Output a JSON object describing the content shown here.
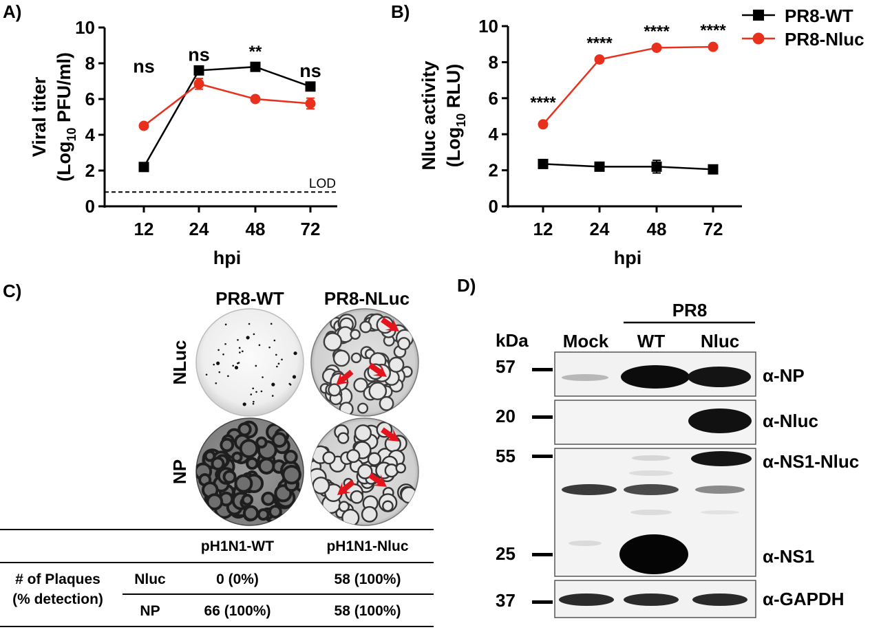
{
  "colors": {
    "wt": "#000000",
    "nluc": "#e8311d",
    "arrow": "#e3141b"
  },
  "legend": {
    "items": [
      {
        "label": "PR8-WT",
        "marker": "square"
      },
      {
        "label": "PR8-Nluc",
        "marker": "circle"
      }
    ]
  },
  "chart_data": [
    {
      "type": "line",
      "panel": "A)",
      "xlabel": "hpi",
      "ylabel_line1": "Viral titer",
      "ylabel_line2": "(Log10 PFU/ml)",
      "ylabel_prefix": "(Log",
      "ylabel_sub": "10",
      "ylabel_suffix": " PFU/ml)",
      "categories": [
        "12",
        "24",
        "48",
        "72"
      ],
      "ylim": [
        0,
        10
      ],
      "yticks": [
        "0",
        "2",
        "4",
        "6",
        "8",
        "10"
      ],
      "series": [
        {
          "name": "PR8-WT",
          "marker": "square",
          "values": [
            2.2,
            7.6,
            7.8,
            6.7
          ]
        },
        {
          "name": "PR8-Nluc",
          "marker": "circle",
          "values": [
            4.5,
            6.85,
            6.0,
            5.75
          ],
          "errors": [
            0.1,
            0.3,
            0.1,
            0.3
          ]
        }
      ],
      "annotations": [
        "ns",
        "ns",
        "**",
        "ns"
      ],
      "lod": {
        "value": 0.8,
        "label": "LOD"
      }
    },
    {
      "type": "line",
      "panel": "B)",
      "xlabel": "hpi",
      "ylabel_line1": "Nluc activity",
      "ylabel_line2": "(Log10 RLU)",
      "ylabel_prefix": "(Log",
      "ylabel_sub": "10",
      "ylabel_suffix": " RLU)",
      "categories": [
        "12",
        "24",
        "48",
        "72"
      ],
      "ylim": [
        0,
        10
      ],
      "yticks": [
        "0",
        "2",
        "4",
        "6",
        "8",
        "10"
      ],
      "series": [
        {
          "name": "PR8-WT",
          "marker": "square",
          "values": [
            2.35,
            2.2,
            2.2,
            2.05
          ],
          "errors": [
            0.1,
            0.1,
            0.35,
            0.1
          ]
        },
        {
          "name": "PR8-Nluc",
          "marker": "circle",
          "values": [
            4.55,
            8.15,
            8.8,
            8.85
          ]
        }
      ],
      "annotations": [
        "****",
        "****",
        "****",
        "****"
      ]
    }
  ],
  "panel_c": {
    "label": "C)",
    "col_headers": [
      "PR8-WT",
      "PR8-NLuc"
    ],
    "row_labels": [
      "NLuc",
      "NP"
    ],
    "table": {
      "header": [
        "pH1N1-WT",
        "pH1N1-Nluc"
      ],
      "row_group_line1": "# of Plaques",
      "row_group_line2": "(% detection)",
      "rows": [
        {
          "label": "Nluc",
          "values": [
            "0 (0%)",
            "58 (100%)"
          ]
        },
        {
          "label": "NP",
          "values": [
            "66 (100%)",
            "58 (100%)"
          ]
        }
      ]
    }
  },
  "panel_d": {
    "label": "D)",
    "group_label": "PR8",
    "kda_label": "kDa",
    "lanes": [
      "Mock",
      "WT",
      "Nluc"
    ],
    "markers": [
      "57",
      "20",
      "55",
      "25",
      "37"
    ],
    "antibodies": [
      "α-NP",
      "α-Nluc",
      "α-NS1-Nluc",
      "α-NS1",
      "α-GAPDH"
    ]
  }
}
